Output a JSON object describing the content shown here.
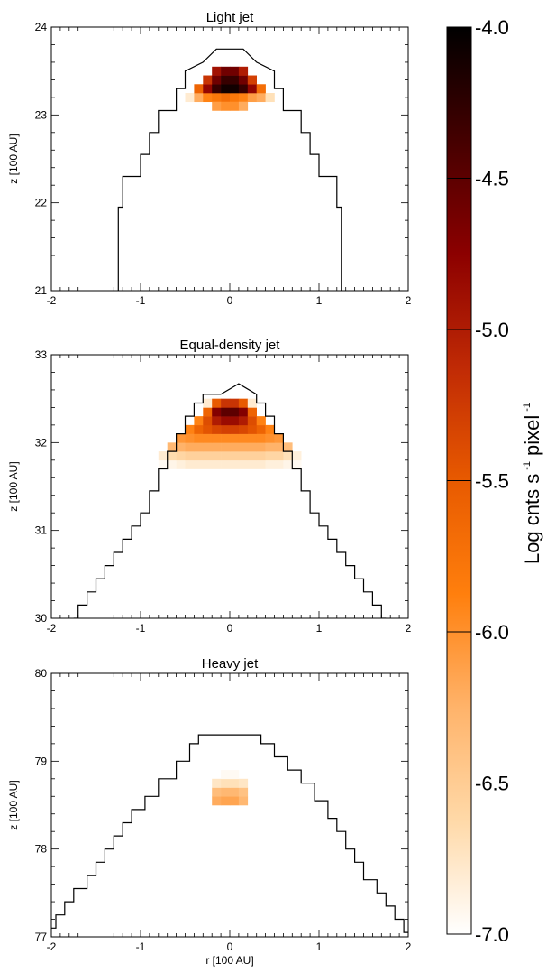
{
  "chart_data": {
    "type": "heatmap",
    "panels": [
      {
        "title": "Light jet",
        "xlabel": "",
        "ylabel": "z [100 AU]",
        "xlim": [
          -2,
          2
        ],
        "ylim": [
          21,
          24
        ],
        "xticks": [
          -2,
          -1,
          0,
          1,
          2
        ],
        "yticks": [
          21,
          22,
          23,
          24
        ],
        "outline_r": [
          -1.25,
          -1.25,
          -1.25,
          -1.2,
          -1.2,
          -1.0,
          -1.0,
          -0.9,
          -0.9,
          -0.8,
          -0.8,
          -0.6,
          -0.6,
          -0.5,
          -0.5,
          -0.3,
          -0.15,
          0.15,
          0.3,
          0.5,
          0.5,
          0.6,
          0.6,
          0.8,
          0.8,
          0.9,
          0.9,
          1.0,
          1.0,
          1.2,
          1.2,
          1.25,
          1.25
        ],
        "outline_z": [
          21.0,
          21.5,
          21.95,
          21.95,
          22.3,
          22.3,
          22.55,
          22.55,
          22.8,
          22.8,
          23.05,
          23.05,
          23.3,
          23.3,
          23.5,
          23.6,
          23.75,
          23.75,
          23.6,
          23.5,
          23.3,
          23.3,
          23.05,
          23.05,
          22.8,
          22.8,
          22.55,
          22.55,
          22.3,
          22.3,
          21.95,
          21.95,
          21.0
        ],
        "cells": [
          [
            -0.45,
            23.2,
            -6.8
          ],
          [
            -0.35,
            23.2,
            -6.2
          ],
          [
            -0.25,
            23.2,
            -5.9
          ],
          [
            -0.15,
            23.2,
            -5.8
          ],
          [
            -0.05,
            23.2,
            -5.7
          ],
          [
            0.05,
            23.2,
            -5.8
          ],
          [
            0.15,
            23.2,
            -5.9
          ],
          [
            0.25,
            23.2,
            -6.1
          ],
          [
            0.35,
            23.2,
            -6.2
          ],
          [
            0.45,
            23.2,
            -6.7
          ],
          [
            -0.35,
            23.3,
            -5.6
          ],
          [
            -0.25,
            23.3,
            -4.8
          ],
          [
            -0.15,
            23.3,
            -4.3
          ],
          [
            -0.05,
            23.3,
            -4.1
          ],
          [
            0.05,
            23.3,
            -4.1
          ],
          [
            0.15,
            23.3,
            -4.3
          ],
          [
            0.25,
            23.3,
            -4.8
          ],
          [
            0.35,
            23.3,
            -5.7
          ],
          [
            -0.25,
            23.4,
            -5.2
          ],
          [
            -0.15,
            23.4,
            -4.6
          ],
          [
            -0.05,
            23.4,
            -4.3
          ],
          [
            0.05,
            23.4,
            -4.3
          ],
          [
            0.15,
            23.4,
            -4.6
          ],
          [
            0.25,
            23.4,
            -5.3
          ],
          [
            -0.15,
            23.5,
            -4.9
          ],
          [
            -0.05,
            23.5,
            -4.6
          ],
          [
            0.05,
            23.5,
            -4.6
          ],
          [
            0.15,
            23.5,
            -5.0
          ],
          [
            -0.15,
            23.1,
            -6.1
          ],
          [
            -0.05,
            23.1,
            -6.0
          ],
          [
            0.05,
            23.1,
            -6.0
          ],
          [
            0.15,
            23.1,
            -6.2
          ]
        ]
      },
      {
        "title": "Equal-density jet",
        "xlabel": "",
        "ylabel": "z [100 AU]",
        "xlim": [
          -2,
          2
        ],
        "ylim": [
          30,
          33
        ],
        "xticks": [
          -2,
          -1,
          0,
          1,
          2
        ],
        "yticks": [
          30,
          31,
          32,
          33
        ],
        "outline_r": [
          -1.75,
          -1.7,
          -1.7,
          -1.6,
          -1.6,
          -1.5,
          -1.5,
          -1.4,
          -1.4,
          -1.3,
          -1.3,
          -1.2,
          -1.2,
          -1.1,
          -1.1,
          -1.0,
          -1.0,
          -0.9,
          -0.9,
          -0.8,
          -0.8,
          -0.7,
          -0.7,
          -0.6,
          -0.6,
          -0.5,
          -0.5,
          -0.4,
          -0.4,
          -0.3,
          -0.3,
          -0.1,
          0.1,
          0.3,
          0.3,
          0.4,
          0.4,
          0.5,
          0.5,
          0.6,
          0.6,
          0.7,
          0.7,
          0.8,
          0.8,
          0.9,
          0.9,
          1.0,
          1.0,
          1.1,
          1.1,
          1.2,
          1.2,
          1.3,
          1.3,
          1.4,
          1.4,
          1.5,
          1.5,
          1.6,
          1.6,
          1.7,
          1.7,
          1.75
        ],
        "outline_z": [
          30.0,
          30.0,
          30.15,
          30.15,
          30.3,
          30.3,
          30.45,
          30.45,
          30.6,
          30.6,
          30.75,
          30.75,
          30.9,
          30.9,
          31.05,
          31.05,
          31.2,
          31.2,
          31.45,
          31.45,
          31.7,
          31.7,
          31.9,
          31.9,
          32.1,
          32.1,
          32.3,
          32.3,
          32.45,
          32.45,
          32.55,
          32.55,
          32.67,
          32.55,
          32.45,
          32.45,
          32.3,
          32.3,
          32.1,
          32.1,
          31.9,
          31.9,
          31.7,
          31.7,
          31.45,
          31.45,
          31.2,
          31.2,
          31.05,
          31.05,
          30.9,
          30.9,
          30.75,
          30.75,
          30.6,
          30.6,
          30.45,
          30.45,
          30.3,
          30.3,
          30.15,
          30.15,
          30.0,
          30.0
        ],
        "cells": [
          [
            -0.75,
            31.75,
            -6.95
          ],
          [
            -0.65,
            31.75,
            -6.9
          ],
          [
            -0.55,
            31.75,
            -6.85
          ],
          [
            -0.45,
            31.75,
            -6.8
          ],
          [
            -0.35,
            31.75,
            -6.8
          ],
          [
            -0.25,
            31.75,
            -6.8
          ],
          [
            -0.15,
            31.75,
            -6.8
          ],
          [
            -0.05,
            31.75,
            -6.8
          ],
          [
            0.05,
            31.75,
            -6.8
          ],
          [
            0.15,
            31.75,
            -6.8
          ],
          [
            0.25,
            31.75,
            -6.8
          ],
          [
            0.35,
            31.75,
            -6.8
          ],
          [
            0.45,
            31.75,
            -6.85
          ],
          [
            0.55,
            31.75,
            -6.85
          ],
          [
            0.65,
            31.75,
            -6.9
          ],
          [
            0.75,
            31.75,
            -6.95
          ],
          [
            -0.75,
            31.85,
            -6.8
          ],
          [
            -0.65,
            31.85,
            -6.65
          ],
          [
            -0.55,
            31.85,
            -6.6
          ],
          [
            -0.45,
            31.85,
            -6.55
          ],
          [
            -0.35,
            31.85,
            -6.55
          ],
          [
            -0.25,
            31.85,
            -6.55
          ],
          [
            -0.15,
            31.85,
            -6.55
          ],
          [
            -0.05,
            31.85,
            -6.55
          ],
          [
            0.05,
            31.85,
            -6.55
          ],
          [
            0.15,
            31.85,
            -6.55
          ],
          [
            0.25,
            31.85,
            -6.55
          ],
          [
            0.35,
            31.85,
            -6.55
          ],
          [
            0.45,
            31.85,
            -6.6
          ],
          [
            0.55,
            31.85,
            -6.6
          ],
          [
            0.65,
            31.85,
            -6.7
          ],
          [
            0.75,
            31.85,
            -6.85
          ],
          [
            -0.65,
            31.95,
            -6.3
          ],
          [
            -0.55,
            31.95,
            -6.25
          ],
          [
            -0.45,
            31.95,
            -6.2
          ],
          [
            -0.35,
            31.95,
            -6.2
          ],
          [
            -0.25,
            31.95,
            -6.2
          ],
          [
            -0.15,
            31.95,
            -6.2
          ],
          [
            -0.05,
            31.95,
            -6.2
          ],
          [
            0.05,
            31.95,
            -6.2
          ],
          [
            0.15,
            31.95,
            -6.2
          ],
          [
            0.25,
            31.95,
            -6.2
          ],
          [
            0.35,
            31.95,
            -6.2
          ],
          [
            0.45,
            31.95,
            -6.25
          ],
          [
            0.55,
            31.95,
            -6.25
          ],
          [
            0.65,
            31.95,
            -6.35
          ],
          [
            -0.55,
            32.05,
            -6.05
          ],
          [
            -0.45,
            32.05,
            -6.0
          ],
          [
            -0.35,
            32.05,
            -5.95
          ],
          [
            -0.25,
            32.05,
            -5.95
          ],
          [
            -0.15,
            32.05,
            -5.95
          ],
          [
            -0.05,
            32.05,
            -5.95
          ],
          [
            0.05,
            32.05,
            -5.95
          ],
          [
            0.15,
            32.05,
            -5.95
          ],
          [
            0.25,
            32.05,
            -5.95
          ],
          [
            0.35,
            32.05,
            -5.95
          ],
          [
            0.45,
            32.05,
            -6.0
          ],
          [
            0.55,
            32.05,
            -6.05
          ],
          [
            -0.45,
            32.15,
            -5.9
          ],
          [
            -0.35,
            32.15,
            -5.6
          ],
          [
            -0.25,
            32.15,
            -5.45
          ],
          [
            -0.15,
            32.15,
            -5.35
          ],
          [
            -0.05,
            32.15,
            -5.3
          ],
          [
            0.05,
            32.15,
            -5.3
          ],
          [
            0.15,
            32.15,
            -5.35
          ],
          [
            0.25,
            32.15,
            -5.45
          ],
          [
            0.35,
            32.15,
            -5.6
          ],
          [
            0.45,
            32.15,
            -5.9
          ],
          [
            -0.35,
            32.25,
            -5.9
          ],
          [
            -0.25,
            32.25,
            -5.4
          ],
          [
            -0.15,
            32.25,
            -5.0
          ],
          [
            -0.05,
            32.25,
            -4.85
          ],
          [
            0.05,
            32.25,
            -4.85
          ],
          [
            0.15,
            32.25,
            -5.0
          ],
          [
            0.25,
            32.25,
            -5.4
          ],
          [
            0.35,
            32.25,
            -5.9
          ],
          [
            -0.25,
            32.35,
            -5.6
          ],
          [
            -0.15,
            32.35,
            -4.7
          ],
          [
            -0.05,
            32.35,
            -4.5
          ],
          [
            0.05,
            32.35,
            -4.5
          ],
          [
            0.15,
            32.35,
            -4.7
          ],
          [
            0.25,
            32.35,
            -5.6
          ],
          [
            -0.25,
            32.45,
            -6.8
          ],
          [
            -0.15,
            32.45,
            -5.5
          ],
          [
            -0.05,
            32.45,
            -5.2
          ],
          [
            0.05,
            32.45,
            -5.2
          ],
          [
            0.15,
            32.45,
            -5.5
          ],
          [
            0.25,
            32.45,
            -6.8
          ]
        ]
      },
      {
        "title": "Heavy jet",
        "xlabel": "r [100 AU]",
        "ylabel": "z [100 AU]",
        "xlim": [
          -2,
          2
        ],
        "ylim": [
          77,
          80
        ],
        "xticks": [
          -2,
          -1,
          0,
          1,
          2
        ],
        "yticks": [
          77,
          78,
          79,
          80
        ],
        "outline_r": [
          -2.0,
          -1.95,
          -1.95,
          -1.85,
          -1.85,
          -1.75,
          -1.75,
          -1.6,
          -1.6,
          -1.5,
          -1.5,
          -1.4,
          -1.4,
          -1.3,
          -1.3,
          -1.2,
          -1.2,
          -1.1,
          -1.1,
          -0.95,
          -0.95,
          -0.8,
          -0.8,
          -0.6,
          -0.6,
          -0.45,
          -0.45,
          -0.35,
          -0.35,
          0.35,
          0.35,
          0.5,
          0.5,
          0.65,
          0.65,
          0.8,
          0.8,
          0.95,
          0.95,
          1.1,
          1.1,
          1.2,
          1.2,
          1.3,
          1.3,
          1.4,
          1.4,
          1.5,
          1.5,
          1.65,
          1.65,
          1.75,
          1.75,
          1.85,
          1.85,
          1.95,
          1.95,
          2.0
        ],
        "outline_z": [
          77.1,
          77.1,
          77.25,
          77.25,
          77.4,
          77.4,
          77.55,
          77.55,
          77.7,
          77.7,
          77.85,
          77.85,
          78.0,
          78.0,
          78.15,
          78.15,
          78.3,
          78.3,
          78.45,
          78.45,
          78.6,
          78.6,
          78.8,
          78.8,
          79.0,
          79.0,
          79.2,
          79.2,
          79.3,
          79.3,
          79.2,
          79.2,
          79.05,
          79.05,
          78.9,
          78.9,
          78.75,
          78.75,
          78.55,
          78.55,
          78.35,
          78.35,
          78.2,
          78.2,
          78.0,
          78.0,
          77.85,
          77.85,
          77.65,
          77.65,
          77.5,
          77.5,
          77.35,
          77.35,
          77.2,
          77.2,
          77.05,
          77.05
        ],
        "cells": [
          [
            -0.15,
            78.55,
            -6.2
          ],
          [
            -0.05,
            78.55,
            -6.15
          ],
          [
            0.05,
            78.55,
            -6.15
          ],
          [
            0.15,
            78.55,
            -6.3
          ],
          [
            -0.15,
            78.65,
            -6.35
          ],
          [
            -0.05,
            78.65,
            -6.3
          ],
          [
            0.05,
            78.65,
            -6.3
          ],
          [
            0.15,
            78.65,
            -6.4
          ],
          [
            -0.15,
            78.75,
            -6.75
          ],
          [
            -0.05,
            78.75,
            -6.7
          ],
          [
            0.05,
            78.75,
            -6.7
          ],
          [
            0.15,
            78.75,
            -6.75
          ],
          [
            -0.05,
            78.85,
            -6.95
          ],
          [
            0.05,
            78.85,
            -6.95
          ]
        ]
      }
    ],
    "colorbar": {
      "label": "Log cnts s",
      "label_sup1": "-1",
      "label_mid": "pixel",
      "label_sup2": "-1",
      "range": [
        -7.0,
        -4.0
      ],
      "ticks": [
        -4.0,
        -4.5,
        -5.0,
        -5.5,
        -6.0,
        -6.5,
        -7.0
      ],
      "tick_labels": [
        "-4.0",
        "-4.5",
        "-5.0",
        "-5.5",
        "-6.0",
        "-6.5",
        "-7.0"
      ],
      "colormap": [
        "#ffffff",
        "#ffd9a8",
        "#ffb36a",
        "#ff7f0d",
        "#e85a00",
        "#c02a05",
        "#8c0000",
        "#450000",
        "#000000"
      ]
    },
    "cell_size": 0.1,
    "grid": false
  }
}
